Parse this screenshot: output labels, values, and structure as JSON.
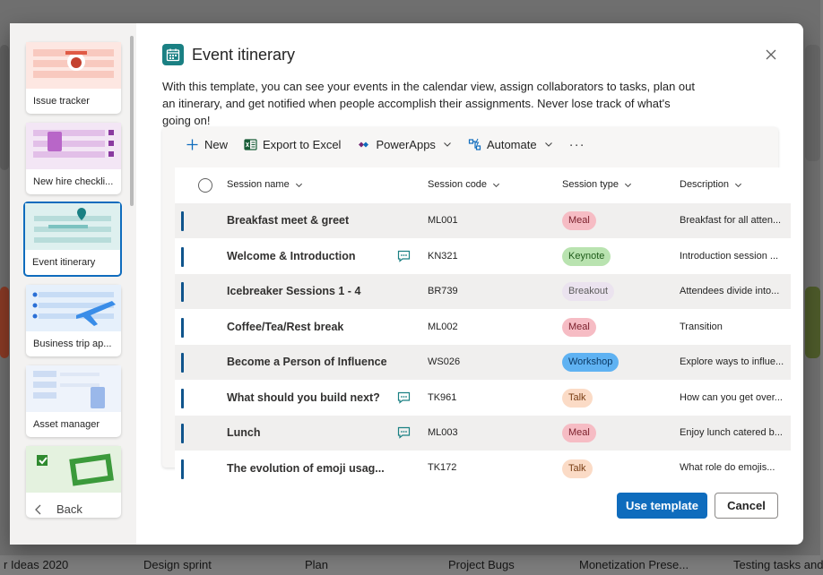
{
  "dialog": {
    "title": "Event itinerary",
    "description": "With this template, you can see your events in the calendar view, assign collaborators to tasks, plan out an itinerary, and get notified when people accomplish their assignments. Never lose track of what's going on!",
    "back_label": "Back",
    "use_template_label": "Use template",
    "cancel_label": "Cancel"
  },
  "templates": [
    {
      "label": "Issue tracker"
    },
    {
      "label": "New hire checkli..."
    },
    {
      "label": "Event itinerary",
      "selected": true
    },
    {
      "label": "Business trip ap..."
    },
    {
      "label": "Asset manager"
    },
    {
      "label": ""
    }
  ],
  "toolbar": {
    "new_label": "New",
    "export_label": "Export to Excel",
    "powerapps_label": "PowerApps",
    "automate_label": "Automate",
    "more_label": "···"
  },
  "columns": {
    "name": "Session name",
    "code": "Session code",
    "type": "Session type",
    "description": "Description"
  },
  "rows": [
    {
      "name": "Breakfast meet & greet",
      "code": "ML001",
      "type": "Meal",
      "description": "Breakfast for all atten...",
      "chat": false
    },
    {
      "name": "Welcome & Introduction",
      "code": "KN321",
      "type": "Keynote",
      "description": "Introduction session ...",
      "chat": true
    },
    {
      "name": "Icebreaker Sessions 1 - 4",
      "code": "BR739",
      "type": "Breakout",
      "description": "Attendees divide into...",
      "chat": false
    },
    {
      "name": "Coffee/Tea/Rest break",
      "code": "ML002",
      "type": "Meal",
      "description": "Transition",
      "chat": false
    },
    {
      "name": "Become a Person of Influence",
      "code": "WS026",
      "type": "Workshop",
      "description": "Explore ways to influe...",
      "chat": false
    },
    {
      "name": "What should you build next?",
      "code": "TK961",
      "type": "Talk",
      "description": "How can you get over...",
      "chat": true
    },
    {
      "name": "Lunch",
      "code": "ML003",
      "type": "Meal",
      "description": "Enjoy lunch catered b...",
      "chat": true
    },
    {
      "name": "The evolution of emoji usag...",
      "code": "TK172",
      "type": "Talk",
      "description": "What role do emojis...",
      "chat": false
    }
  ],
  "pill_colors": {
    "Meal": {
      "bg": "#f6bcc4",
      "fg": "#7a1e2a"
    },
    "Keynote": {
      "bg": "#b9e3b0",
      "fg": "#1f5c1a"
    },
    "Breakout": {
      "bg": "#ebe3ef",
      "fg": "#5c5c5c"
    },
    "Workshop": {
      "bg": "#5fb2f2",
      "fg": "#0b3a66"
    },
    "Talk": {
      "bg": "#fbdbc6",
      "fg": "#7a3e14"
    }
  },
  "background_tiles": [
    {
      "label": "r Ideas 2020"
    },
    {
      "label": "Design sprint"
    },
    {
      "label": "Plan"
    },
    {
      "label": "Project Bugs"
    },
    {
      "label": "Monetization Prese..."
    },
    {
      "label": "Testing tasks and"
    }
  ]
}
